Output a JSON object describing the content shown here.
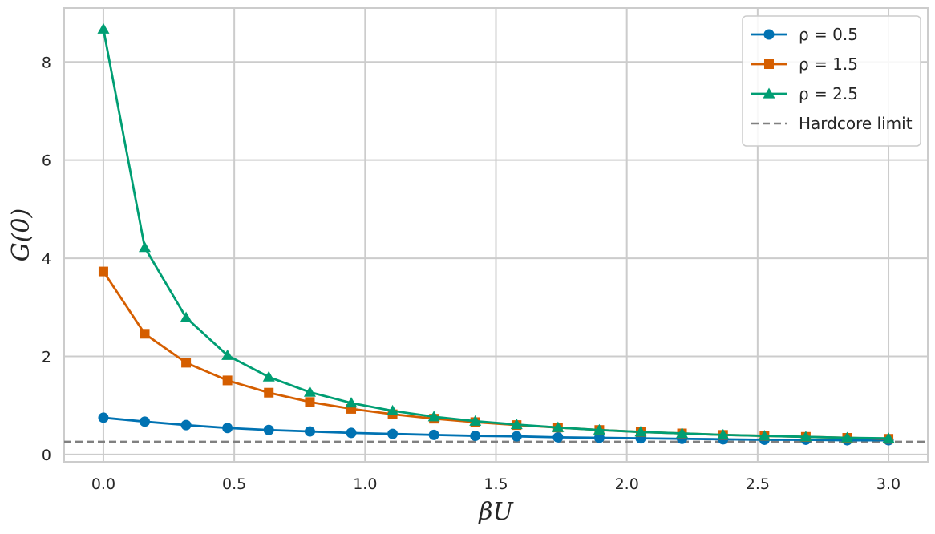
{
  "chart_data": {
    "type": "line",
    "title": "",
    "xlabel": "βU",
    "ylabel": "G(0)",
    "xlim": [
      -0.15,
      3.15
    ],
    "ylim": [
      -0.15,
      9.1
    ],
    "xticks": [
      0.0,
      0.5,
      1.0,
      1.5,
      2.0,
      2.5,
      3.0
    ],
    "xtick_labels": [
      "0.0",
      "0.5",
      "1.0",
      "1.5",
      "2.0",
      "2.5",
      "3.0"
    ],
    "yticks": [
      0,
      2,
      4,
      6,
      8
    ],
    "ytick_labels": [
      "0",
      "2",
      "4",
      "6",
      "8"
    ],
    "grid": true,
    "legend_position": "top-right",
    "x": [
      0.0,
      0.158,
      0.316,
      0.474,
      0.632,
      0.789,
      0.947,
      1.105,
      1.263,
      1.421,
      1.579,
      1.737,
      1.895,
      2.053,
      2.211,
      2.368,
      2.526,
      2.684,
      2.842,
      3.0
    ],
    "series": [
      {
        "name": "ρ = 0.5",
        "color": "#0072B2",
        "marker": "circle",
        "values": [
          0.75,
          0.67,
          0.6,
          0.54,
          0.5,
          0.47,
          0.44,
          0.42,
          0.4,
          0.38,
          0.37,
          0.35,
          0.34,
          0.33,
          0.32,
          0.31,
          0.3,
          0.3,
          0.29,
          0.29
        ]
      },
      {
        "name": "ρ = 1.5",
        "color": "#D55E00",
        "marker": "square",
        "values": [
          3.73,
          2.46,
          1.87,
          1.51,
          1.26,
          1.07,
          0.93,
          0.82,
          0.73,
          0.66,
          0.6,
          0.55,
          0.5,
          0.46,
          0.43,
          0.4,
          0.38,
          0.36,
          0.34,
          0.32
        ]
      },
      {
        "name": "ρ = 2.5",
        "color": "#009E73",
        "marker": "triangle",
        "values": [
          8.67,
          4.22,
          2.79,
          2.02,
          1.58,
          1.27,
          1.05,
          0.89,
          0.77,
          0.68,
          0.61,
          0.55,
          0.5,
          0.46,
          0.43,
          0.4,
          0.38,
          0.36,
          0.34,
          0.33
        ]
      }
    ],
    "reference_lines": [
      {
        "name": "Hardcore limit",
        "y": 0.26,
        "color": "#808080",
        "style": "dashed"
      }
    ]
  }
}
